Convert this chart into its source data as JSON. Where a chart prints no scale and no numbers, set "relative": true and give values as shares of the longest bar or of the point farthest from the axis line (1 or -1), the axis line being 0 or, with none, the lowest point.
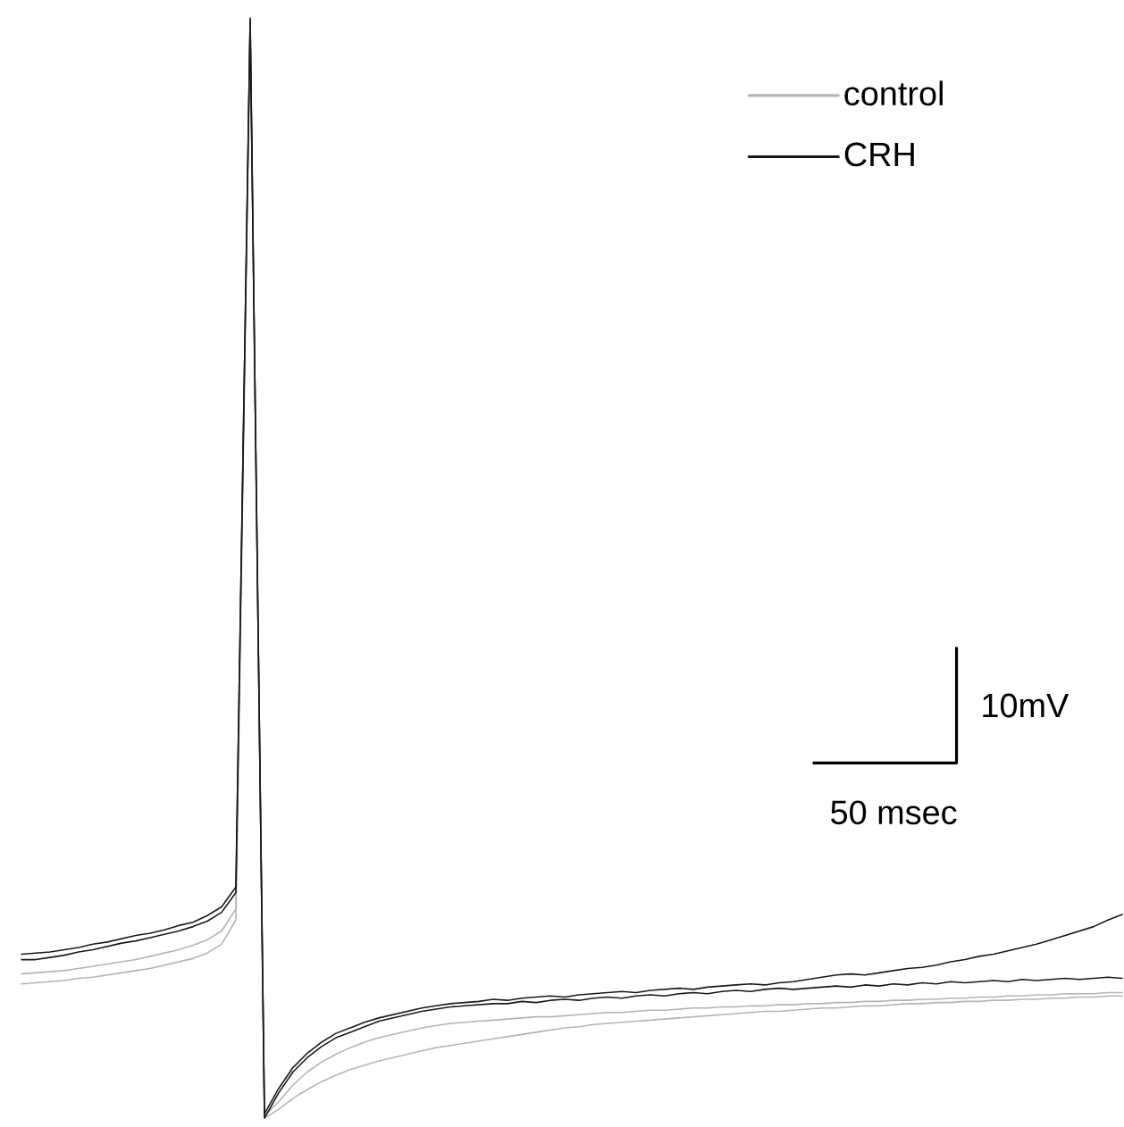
{
  "chart_data": {
    "type": "line",
    "relative": true,
    "legend": "top right",
    "marker": "none",
    "line_style": "solid",
    "annotations": [
      "10mV",
      "50 msec"
    ],
    "categories": [
      null,
      null,
      null,
      null,
      null,
      null,
      null,
      null,
      null,
      null,
      null,
      null,
      null,
      null,
      null,
      null,
      null,
      null,
      null,
      null,
      null,
      null,
      null,
      null,
      null,
      null,
      null,
      null,
      null,
      null,
      null,
      null,
      null,
      null,
      null,
      null,
      null,
      null,
      null,
      null,
      null,
      null,
      null,
      null,
      null,
      null,
      null,
      null,
      null,
      null,
      null,
      null,
      null,
      null,
      null,
      null,
      null,
      null,
      null,
      null,
      null,
      null,
      null,
      null,
      null,
      null,
      null,
      null,
      null,
      null,
      null,
      null,
      null,
      null,
      null,
      null,
      null,
      null
    ],
    "series": [
      {
        "name": "control",
        "color": "#b4b4b4",
        "values": [
          0.131,
          0.132,
          0.133,
          0.134,
          0.136,
          0.138,
          0.14,
          0.142,
          0.144,
          0.147,
          0.15,
          0.153,
          0.157,
          0.162,
          0.17,
          0.19,
          0.995,
          0.002,
          0.015,
          0.03,
          0.042,
          0.051,
          0.058,
          0.064,
          0.069,
          0.073,
          0.076,
          0.079,
          0.082,
          0.084,
          0.086,
          0.087,
          0.088,
          0.089,
          0.09,
          0.091,
          0.092,
          0.092,
          0.093,
          0.094,
          0.095,
          0.096,
          0.096,
          0.097,
          0.098,
          0.098,
          0.099,
          0.1,
          0.1,
          0.101,
          0.101,
          0.102,
          0.102,
          0.103,
          0.103,
          0.104,
          0.104,
          0.105,
          0.105,
          0.106,
          0.106,
          0.107,
          0.107,
          0.108,
          0.108,
          0.109,
          0.109,
          0.11,
          0.11,
          0.111,
          0.111,
          0.112,
          0.112,
          0.113,
          0.113,
          0.113,
          0.114,
          0.114
        ]
      },
      {
        "color": "#b4b4b4",
        "values": [
          0.122,
          0.123,
          0.124,
          0.125,
          0.127,
          0.128,
          0.13,
          0.132,
          0.134,
          0.136,
          0.139,
          0.142,
          0.145,
          0.15,
          0.158,
          0.18,
          0.99,
          0.0,
          0.008,
          0.018,
          0.026,
          0.033,
          0.039,
          0.044,
          0.048,
          0.052,
          0.055,
          0.058,
          0.061,
          0.064,
          0.066,
          0.068,
          0.07,
          0.072,
          0.074,
          0.076,
          0.078,
          0.08,
          0.082,
          0.083,
          0.085,
          0.086,
          0.087,
          0.088,
          0.089,
          0.09,
          0.091,
          0.092,
          0.093,
          0.094,
          0.095,
          0.096,
          0.097,
          0.097,
          0.098,
          0.099,
          0.1,
          0.1,
          0.101,
          0.102,
          0.102,
          0.103,
          0.104,
          0.104,
          0.105,
          0.105,
          0.106,
          0.106,
          0.107,
          0.107,
          0.108,
          0.108,
          0.109,
          0.109,
          0.11,
          0.11,
          0.111,
          0.111
        ]
      },
      {
        "name": "CRH",
        "color": "#1a1a1a",
        "values": [
          0.144,
          0.144,
          0.146,
          0.148,
          0.151,
          0.153,
          0.156,
          0.159,
          0.161,
          0.164,
          0.167,
          0.17,
          0.174,
          0.179,
          0.187,
          0.205,
          1,
          0,
          0.023,
          0.042,
          0.055,
          0.065,
          0.073,
          0.078,
          0.083,
          0.088,
          0.091,
          0.094,
          0.097,
          0.099,
          0.101,
          0.102,
          0.103,
          0.104,
          0.104,
          0.106,
          0.105,
          0.107,
          0.108,
          0.107,
          0.109,
          0.11,
          0.109,
          0.111,
          0.112,
          0.111,
          0.113,
          0.114,
          0.113,
          0.115,
          0.116,
          0.115,
          0.117,
          0.118,
          0.117,
          0.118,
          0.119,
          0.12,
          0.119,
          0.121,
          0.12,
          0.122,
          0.121,
          0.123,
          0.122,
          0.124,
          0.123,
          0.124,
          0.125,
          0.124,
          0.126,
          0.125,
          0.126,
          0.127,
          0.126,
          0.127,
          0.128,
          0.127
        ]
      },
      {
        "color": "#1a1a1a",
        "values": [
          0.149,
          0.15,
          0.151,
          0.153,
          0.155,
          0.158,
          0.16,
          0.163,
          0.166,
          0.168,
          0.171,
          0.175,
          0.178,
          0.184,
          0.192,
          0.21,
          0.998,
          0.004,
          0.027,
          0.046,
          0.059,
          0.069,
          0.077,
          0.082,
          0.087,
          0.091,
          0.094,
          0.097,
          0.1,
          0.102,
          0.104,
          0.105,
          0.106,
          0.108,
          0.107,
          0.109,
          0.11,
          0.111,
          0.11,
          0.112,
          0.113,
          0.114,
          0.115,
          0.114,
          0.116,
          0.117,
          0.118,
          0.117,
          0.119,
          0.12,
          0.121,
          0.122,
          0.121,
          0.123,
          0.124,
          0.126,
          0.128,
          0.13,
          0.131,
          0.13,
          0.132,
          0.134,
          0.136,
          0.137,
          0.139,
          0.142,
          0.144,
          0.147,
          0.149,
          0.152,
          0.155,
          0.158,
          0.162,
          0.166,
          0.17,
          0.174,
          0.18,
          0.185
        ]
      }
    ]
  }
}
